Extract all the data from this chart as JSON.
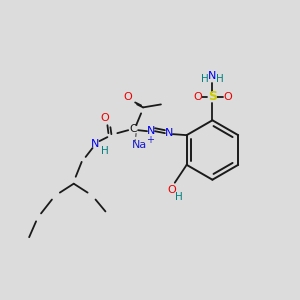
{
  "bg_color": "#dcdcdc",
  "bond_color": "#1a1a1a",
  "colors": {
    "C": "#1a1a1a",
    "N": "#0000ee",
    "O": "#ee0000",
    "S": "#cccc00",
    "H": "#008080",
    "Na": "#1a1acd"
  }
}
